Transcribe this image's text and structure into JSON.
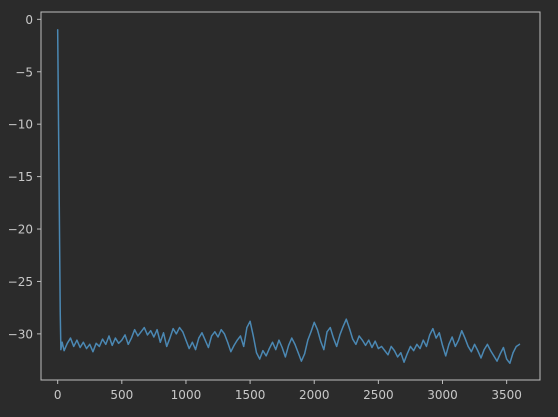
{
  "colors": {
    "background": "#2b2b2b",
    "series": "#4b88b3",
    "axis": "#bdbdbd",
    "text": "#c8c8c8"
  },
  "chart_data": {
    "type": "line",
    "title": "",
    "xlabel": "",
    "ylabel": "",
    "grid": false,
    "legend": "none",
    "xlim": [
      -130,
      3760
    ],
    "ylim": [
      -34.4,
      0.7
    ],
    "xticks": [
      0,
      500,
      1000,
      1500,
      2000,
      2500,
      3000,
      3500
    ],
    "xtick_labels": [
      "0",
      "500",
      "1000",
      "1500",
      "2000",
      "2500",
      "3000",
      "3500"
    ],
    "yticks": [
      0,
      -5,
      -10,
      -15,
      -20,
      -25,
      -30
    ],
    "ytick_labels": [
      "0",
      "−5",
      "−10",
      "−15",
      "−20",
      "−25",
      "−30"
    ],
    "series": [
      {
        "color": "#4b88b3",
        "x": [
          0,
          20,
          25,
          35,
          50,
          75,
          100,
          125,
          150,
          175,
          200,
          225,
          250,
          275,
          300,
          325,
          350,
          375,
          400,
          425,
          450,
          475,
          500,
          525,
          550,
          575,
          600,
          625,
          650,
          675,
          700,
          725,
          750,
          775,
          800,
          825,
          850,
          875,
          900,
          925,
          950,
          975,
          1000,
          1025,
          1050,
          1075,
          1100,
          1125,
          1150,
          1175,
          1200,
          1225,
          1250,
          1275,
          1300,
          1325,
          1350,
          1375,
          1400,
          1425,
          1450,
          1475,
          1500,
          1525,
          1550,
          1575,
          1600,
          1625,
          1650,
          1675,
          1700,
          1725,
          1750,
          1775,
          1800,
          1825,
          1850,
          1875,
          1900,
          1925,
          1950,
          1975,
          2000,
          2025,
          2050,
          2075,
          2100,
          2125,
          2150,
          2175,
          2200,
          2225,
          2250,
          2275,
          2300,
          2325,
          2350,
          2375,
          2400,
          2425,
          2450,
          2475,
          2500,
          2525,
          2550,
          2575,
          2600,
          2625,
          2650,
          2675,
          2700,
          2725,
          2750,
          2775,
          2800,
          2825,
          2850,
          2875,
          2900,
          2925,
          2950,
          2975,
          3000,
          3025,
          3050,
          3075,
          3100,
          3125,
          3150,
          3175,
          3200,
          3225,
          3250,
          3275,
          3300,
          3325,
          3350,
          3375,
          3400,
          3425,
          3450,
          3475,
          3500,
          3525,
          3550,
          3575,
          3600
        ],
        "values": [
          -1.0,
          -28.0,
          -31.5,
          -30.8,
          -31.6,
          -30.9,
          -30.4,
          -31.2,
          -30.6,
          -31.3,
          -30.8,
          -31.4,
          -31.0,
          -31.7,
          -30.9,
          -31.2,
          -30.5,
          -31.0,
          -30.2,
          -31.1,
          -30.4,
          -30.9,
          -30.6,
          -30.1,
          -31.0,
          -30.4,
          -29.6,
          -30.2,
          -29.8,
          -29.4,
          -30.1,
          -29.7,
          -30.3,
          -29.6,
          -30.8,
          -29.9,
          -31.2,
          -30.4,
          -29.5,
          -30.0,
          -29.4,
          -29.8,
          -30.6,
          -31.4,
          -30.8,
          -31.5,
          -30.4,
          -29.9,
          -30.6,
          -31.3,
          -30.2,
          -29.8,
          -30.3,
          -29.6,
          -30.0,
          -30.8,
          -31.7,
          -31.1,
          -30.6,
          -30.2,
          -31.2,
          -29.4,
          -28.8,
          -30.2,
          -31.8,
          -32.4,
          -31.6,
          -32.1,
          -31.4,
          -30.8,
          -31.5,
          -30.6,
          -31.3,
          -32.2,
          -31.1,
          -30.4,
          -31.0,
          -31.8,
          -32.6,
          -31.9,
          -30.6,
          -29.8,
          -28.9,
          -29.6,
          -30.7,
          -31.5,
          -29.8,
          -29.4,
          -30.4,
          -31.2,
          -30.1,
          -29.3,
          -28.6,
          -29.5,
          -30.5,
          -31.0,
          -30.2,
          -30.6,
          -31.1,
          -30.6,
          -31.3,
          -30.7,
          -31.4,
          -31.2,
          -31.6,
          -32.0,
          -31.2,
          -31.6,
          -32.2,
          -31.8,
          -32.7,
          -31.9,
          -31.2,
          -31.6,
          -31.0,
          -31.4,
          -30.6,
          -31.2,
          -30.1,
          -29.5,
          -30.4,
          -29.9,
          -31.1,
          -32.1,
          -31.0,
          -30.3,
          -31.2,
          -30.6,
          -29.7,
          -30.4,
          -31.2,
          -31.7,
          -31.0,
          -31.6,
          -32.3,
          -31.5,
          -31.0,
          -31.6,
          -32.1,
          -32.6,
          -31.9,
          -31.3,
          -32.4,
          -32.8,
          -31.8,
          -31.2,
          -31.0
        ]
      }
    ]
  }
}
